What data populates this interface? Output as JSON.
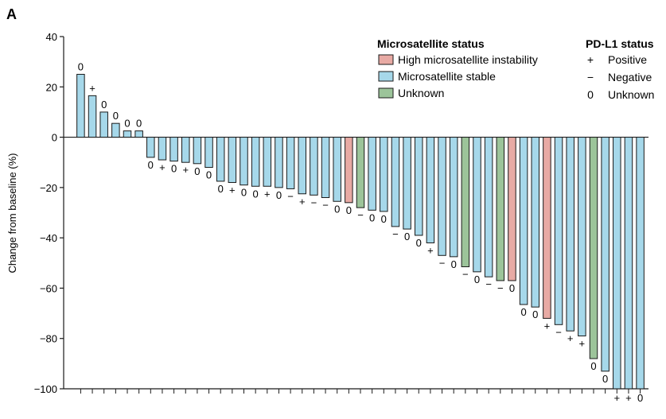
{
  "panel_label": "A",
  "chart_data": {
    "type": "bar",
    "ylabel": "Change from baseline (%)",
    "ylim": [
      -100,
      40
    ],
    "yticks": [
      40,
      20,
      0,
      -20,
      -40,
      -60,
      -80,
      -100
    ],
    "bars": [
      {
        "value": 25,
        "msi": "stable",
        "pdl1": "0"
      },
      {
        "value": 16.5,
        "msi": "stable",
        "pdl1": "+"
      },
      {
        "value": 10,
        "msi": "stable",
        "pdl1": "0"
      },
      {
        "value": 5.5,
        "msi": "stable",
        "pdl1": "0"
      },
      {
        "value": 2.5,
        "msi": "stable",
        "pdl1": "0"
      },
      {
        "value": 2.5,
        "msi": "stable",
        "pdl1": "0"
      },
      {
        "value": -8,
        "msi": "stable",
        "pdl1": "0"
      },
      {
        "value": -9,
        "msi": "stable",
        "pdl1": "+"
      },
      {
        "value": -9.5,
        "msi": "stable",
        "pdl1": "0"
      },
      {
        "value": -10,
        "msi": "stable",
        "pdl1": "+"
      },
      {
        "value": -10.5,
        "msi": "stable",
        "pdl1": "0"
      },
      {
        "value": -12,
        "msi": "stable",
        "pdl1": "0"
      },
      {
        "value": -17.5,
        "msi": "stable",
        "pdl1": "0"
      },
      {
        "value": -18,
        "msi": "stable",
        "pdl1": "+"
      },
      {
        "value": -19,
        "msi": "stable",
        "pdl1": "0"
      },
      {
        "value": -19.5,
        "msi": "stable",
        "pdl1": "0"
      },
      {
        "value": -19.5,
        "msi": "stable",
        "pdl1": "+"
      },
      {
        "value": -20,
        "msi": "stable",
        "pdl1": "0"
      },
      {
        "value": -20.5,
        "msi": "stable",
        "pdl1": "−"
      },
      {
        "value": -22.5,
        "msi": "stable",
        "pdl1": "+"
      },
      {
        "value": -23,
        "msi": "stable",
        "pdl1": "−"
      },
      {
        "value": -24,
        "msi": "stable",
        "pdl1": "−"
      },
      {
        "value": -25.5,
        "msi": "stable",
        "pdl1": "0"
      },
      {
        "value": -26,
        "msi": "high",
        "pdl1": "0"
      },
      {
        "value": -28,
        "msi": "unknown",
        "pdl1": "−"
      },
      {
        "value": -29,
        "msi": "stable",
        "pdl1": "0"
      },
      {
        "value": -29.5,
        "msi": "stable",
        "pdl1": "0"
      },
      {
        "value": -35.5,
        "msi": "stable",
        "pdl1": "−"
      },
      {
        "value": -36.5,
        "msi": "stable",
        "pdl1": "0"
      },
      {
        "value": -39,
        "msi": "stable",
        "pdl1": "0"
      },
      {
        "value": -42,
        "msi": "stable",
        "pdl1": "+"
      },
      {
        "value": -47,
        "msi": "stable",
        "pdl1": "−"
      },
      {
        "value": -47.5,
        "msi": "stable",
        "pdl1": "0"
      },
      {
        "value": -51.5,
        "msi": "unknown",
        "pdl1": "−"
      },
      {
        "value": -53.5,
        "msi": "stable",
        "pdl1": "0"
      },
      {
        "value": -55.5,
        "msi": "stable",
        "pdl1": "−"
      },
      {
        "value": -57,
        "msi": "unknown",
        "pdl1": "−"
      },
      {
        "value": -57,
        "msi": "high",
        "pdl1": "0"
      },
      {
        "value": -66.5,
        "msi": "stable",
        "pdl1": "0"
      },
      {
        "value": -67.5,
        "msi": "stable",
        "pdl1": "0"
      },
      {
        "value": -72,
        "msi": "high",
        "pdl1": "+"
      },
      {
        "value": -74.5,
        "msi": "stable",
        "pdl1": "−"
      },
      {
        "value": -77,
        "msi": "stable",
        "pdl1": "+"
      },
      {
        "value": -79,
        "msi": "stable",
        "pdl1": "+"
      },
      {
        "value": -88,
        "msi": "unknown",
        "pdl1": "0"
      },
      {
        "value": -93,
        "msi": "stable",
        "pdl1": "0"
      },
      {
        "value": -100,
        "msi": "stable",
        "pdl1": "+"
      },
      {
        "value": -100,
        "msi": "stable",
        "pdl1": "+"
      },
      {
        "value": -100,
        "msi": "stable",
        "pdl1": "0"
      }
    ],
    "colors": {
      "high": "#e8aaa4",
      "stable": "#a6d8ea",
      "unknown": "#9cc49a",
      "stroke": "#1a1a1a"
    },
    "legend_msi": {
      "title": "Microsatellite status",
      "items": [
        {
          "key": "high",
          "label": "High microsatellite instability"
        },
        {
          "key": "stable",
          "label": "Microsatellite stable"
        },
        {
          "key": "unknown",
          "label": "Unknown"
        }
      ]
    },
    "legend_pdl1": {
      "title": "PD-L1 status",
      "items": [
        {
          "symbol": "+",
          "label": "Positive"
        },
        {
          "symbol": "−",
          "label": "Negative"
        },
        {
          "symbol": "0",
          "label": "Unknown"
        }
      ]
    }
  }
}
